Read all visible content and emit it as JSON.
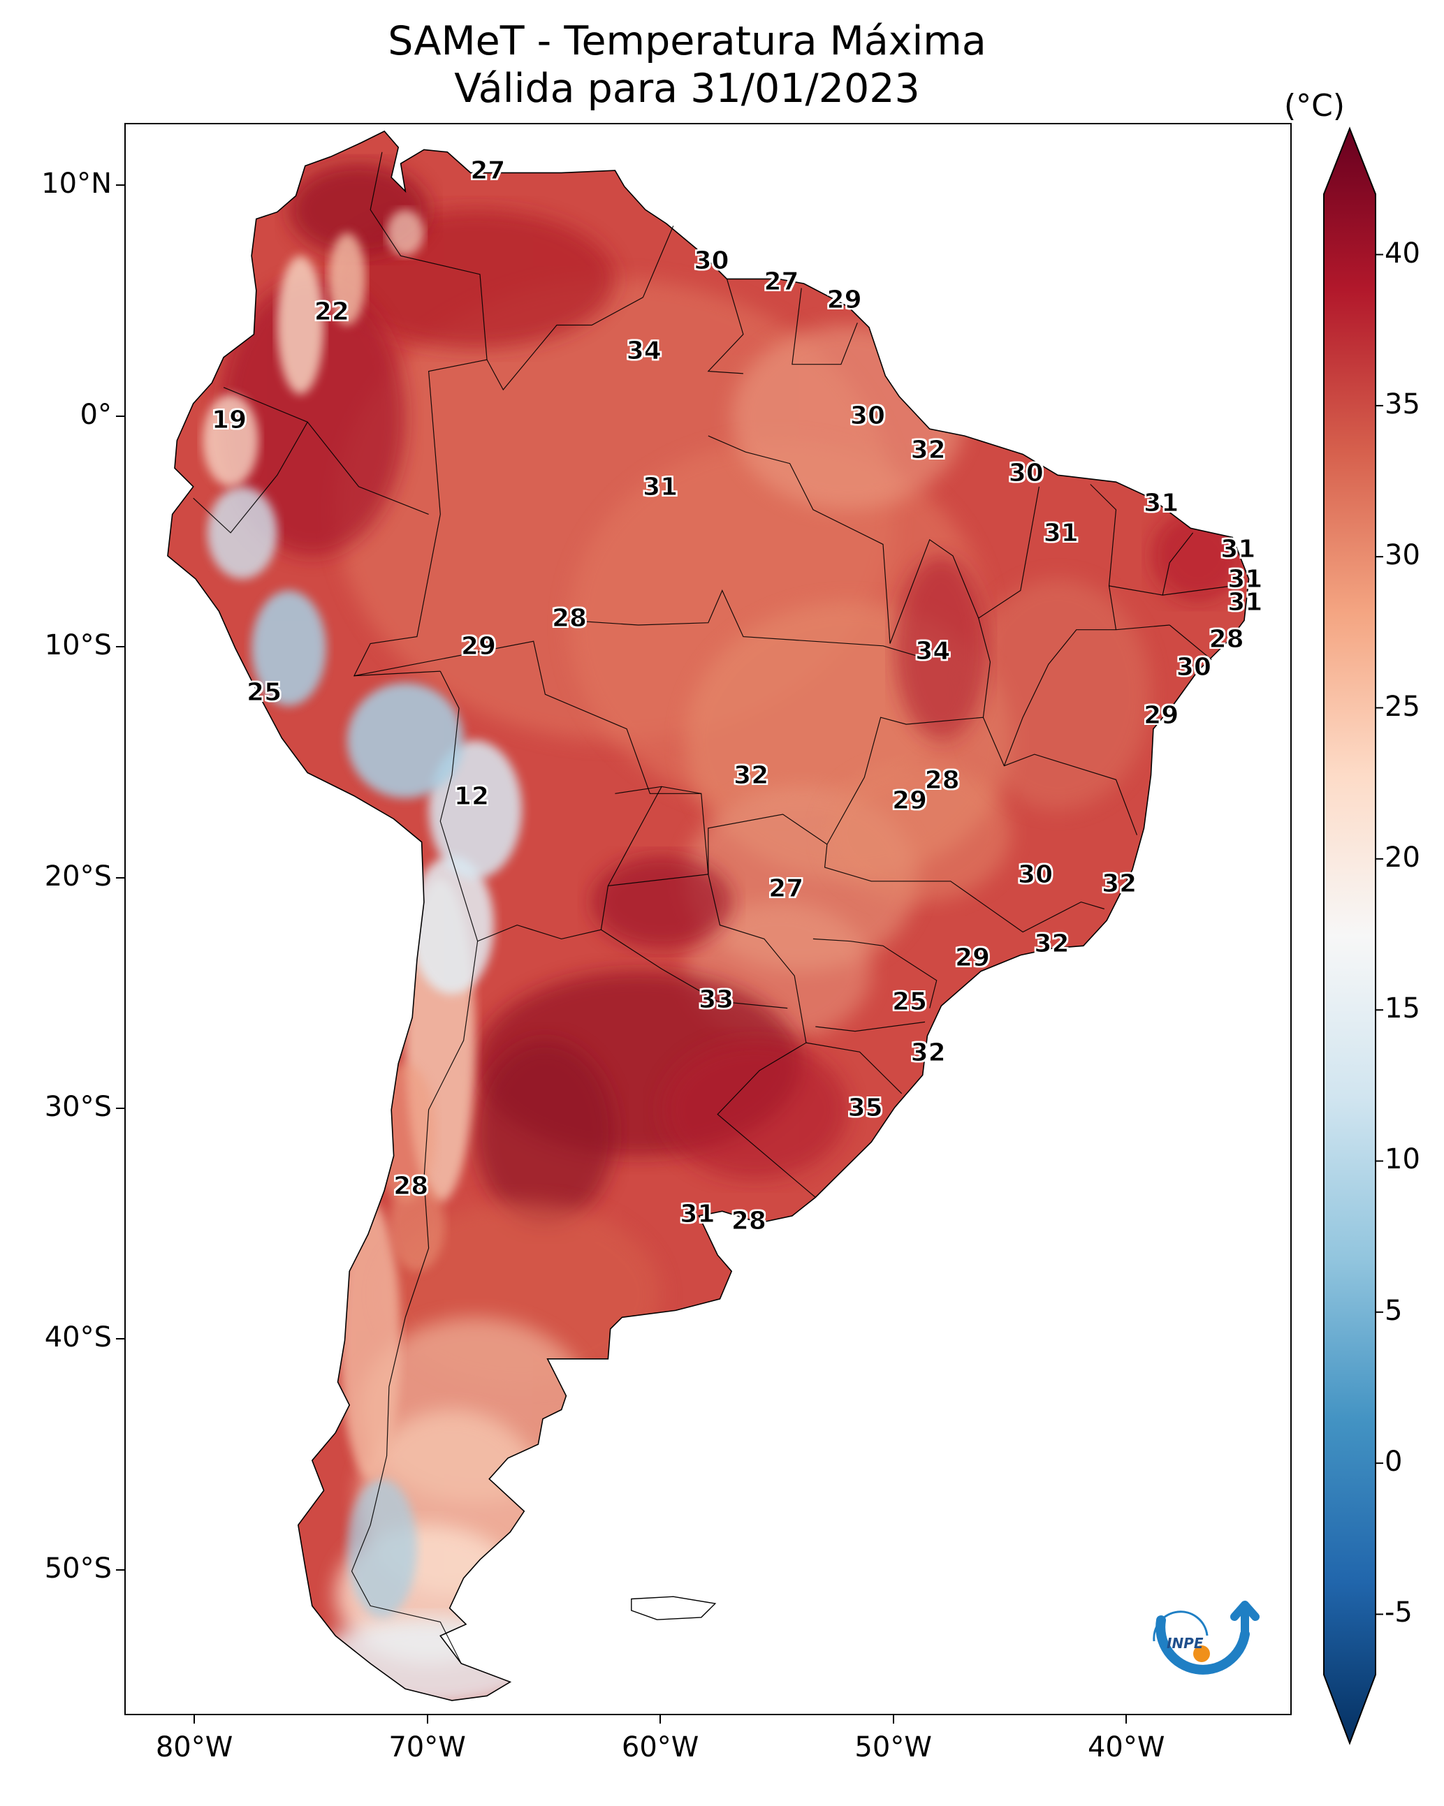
{
  "title": {
    "line1": "SAMeT - Temperatura Máxima",
    "line2": "Válida para 31/01/2023"
  },
  "map": {
    "region": "South America",
    "variable": "max-temperature",
    "lat_ticks": [
      {
        "lat": 10,
        "label": "10°N"
      },
      {
        "lat": 0,
        "label": "0°"
      },
      {
        "lat": -10,
        "label": "10°S"
      },
      {
        "lat": -20,
        "label": "20°S"
      },
      {
        "lat": -30,
        "label": "30°S"
      },
      {
        "lat": -40,
        "label": "40°S"
      },
      {
        "lat": -50,
        "label": "50°S"
      }
    ],
    "lon_ticks": [
      {
        "lon": -80,
        "label": "80°W"
      },
      {
        "lon": -70,
        "label": "70°W"
      },
      {
        "lon": -60,
        "label": "60°W"
      },
      {
        "lon": -50,
        "label": "50°W"
      },
      {
        "lon": -40,
        "label": "40°W"
      }
    ],
    "station_labels": [
      {
        "value": "27",
        "lat": 10.6,
        "lon": -67.4
      },
      {
        "value": "30",
        "lat": 6.7,
        "lon": -57.8
      },
      {
        "value": "27",
        "lat": 5.8,
        "lon": -54.8
      },
      {
        "value": "29",
        "lat": 5.0,
        "lon": -52.1
      },
      {
        "value": "22",
        "lat": 4.5,
        "lon": -74.1
      },
      {
        "value": "34",
        "lat": 2.8,
        "lon": -60.7
      },
      {
        "value": "19",
        "lat": -0.2,
        "lon": -78.5
      },
      {
        "value": "30",
        "lat": 0.0,
        "lon": -51.1
      },
      {
        "value": "32",
        "lat": -1.5,
        "lon": -48.5
      },
      {
        "value": "30",
        "lat": -2.5,
        "lon": -44.3
      },
      {
        "value": "31",
        "lat": -3.1,
        "lon": -60.0
      },
      {
        "value": "31",
        "lat": -3.8,
        "lon": -38.5
      },
      {
        "value": "31",
        "lat": -5.1,
        "lon": -42.8
      },
      {
        "value": "31",
        "lat": -5.8,
        "lon": -35.2
      },
      {
        "value": "31",
        "lat": -7.1,
        "lon": -34.9
      },
      {
        "value": "31",
        "lat": -8.1,
        "lon": -34.9
      },
      {
        "value": "28",
        "lat": -8.8,
        "lon": -63.9
      },
      {
        "value": "29",
        "lat": -10.0,
        "lon": -67.8
      },
      {
        "value": "28",
        "lat": -9.7,
        "lon": -35.7
      },
      {
        "value": "34",
        "lat": -10.2,
        "lon": -48.3
      },
      {
        "value": "30",
        "lat": -10.9,
        "lon": -37.1
      },
      {
        "value": "25",
        "lat": -12.0,
        "lon": -77.0
      },
      {
        "value": "29",
        "lat": -13.0,
        "lon": -38.5
      },
      {
        "value": "32",
        "lat": -15.6,
        "lon": -56.1
      },
      {
        "value": "28",
        "lat": -15.8,
        "lon": -47.9
      },
      {
        "value": "29",
        "lat": -16.7,
        "lon": -49.3
      },
      {
        "value": "12",
        "lat": -16.5,
        "lon": -68.1
      },
      {
        "value": "30",
        "lat": -19.9,
        "lon": -43.9
      },
      {
        "value": "32",
        "lat": -20.3,
        "lon": -40.3
      },
      {
        "value": "27",
        "lat": -20.5,
        "lon": -54.6
      },
      {
        "value": "32",
        "lat": -22.9,
        "lon": -43.2
      },
      {
        "value": "29",
        "lat": -23.5,
        "lon": -46.6
      },
      {
        "value": "33",
        "lat": -25.3,
        "lon": -57.6
      },
      {
        "value": "25",
        "lat": -25.4,
        "lon": -49.3
      },
      {
        "value": "32",
        "lat": -27.6,
        "lon": -48.5
      },
      {
        "value": "35",
        "lat": -30.0,
        "lon": -51.2
      },
      {
        "value": "28",
        "lat": -33.4,
        "lon": -70.7
      },
      {
        "value": "31",
        "lat": -34.6,
        "lon": -58.4
      },
      {
        "value": "28",
        "lat": -34.9,
        "lon": -56.2
      }
    ]
  },
  "colorbar": {
    "unit": "(°C)",
    "min": -7,
    "max": 42,
    "ticks": [
      {
        "value": 40,
        "label": "40"
      },
      {
        "value": 35,
        "label": "35"
      },
      {
        "value": 30,
        "label": "30"
      },
      {
        "value": 25,
        "label": "25"
      },
      {
        "value": 20,
        "label": "20"
      },
      {
        "value": 15,
        "label": "15"
      },
      {
        "value": 10,
        "label": "10"
      },
      {
        "value": 5,
        "label": "5"
      },
      {
        "value": 0,
        "label": "0"
      },
      {
        "value": -5,
        "label": "-5"
      }
    ],
    "colors": [
      "#053061",
      "#2166ac",
      "#4393c3",
      "#92c5de",
      "#d1e5f0",
      "#f7f7f7",
      "#fddbc7",
      "#f4a582",
      "#d6604d",
      "#b2182b",
      "#67001f"
    ]
  },
  "logo": {
    "text": "INPE"
  }
}
